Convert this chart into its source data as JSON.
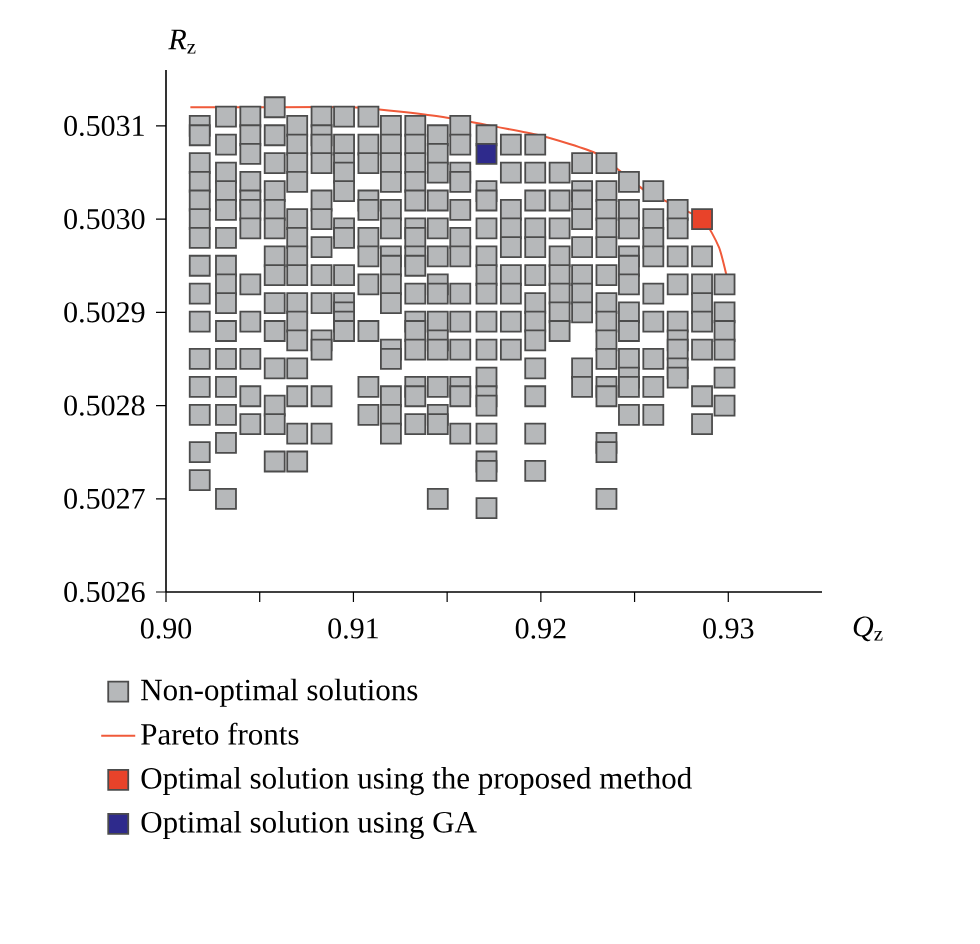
{
  "chart_data": {
    "type": "scatter",
    "xlabel": "*Q*$_{z}$",
    "ylabel": "*R*$_{z}$",
    "xlim": [
      0.9,
      0.935
    ],
    "ylim": [
      0.5026,
      0.50316
    ],
    "xticks": [
      {
        "value": 0.9,
        "label": "0.90"
      },
      {
        "value": 0.905,
        "label": null
      },
      0.91,
      {
        "value": 0.915,
        "label": null
      },
      0.92,
      {
        "value": 0.925,
        "label": null
      },
      0.93
    ],
    "yticks": [
      0.5026,
      0.5027,
      0.5028,
      0.5029,
      {
        "value": 0.503,
        "label": "0.5030"
      },
      0.5031
    ],
    "marker": "square",
    "legend": "bottom",
    "series": [
      {
        "name": "Non-optimal solutions",
        "color": "#b6b8ba",
        "x": [
          0.9018,
          0.9018,
          0.9018,
          0.9018,
          0.9018,
          0.9018,
          0.9018,
          0.9018,
          0.9018,
          0.9018,
          0.9018,
          0.9018,
          0.9018,
          0.9018,
          0.9018,
          0.9032,
          0.9032,
          0.9032,
          0.9032,
          0.9032,
          0.9032,
          0.9032,
          0.9032,
          0.9032,
          0.9032,
          0.9032,
          0.9032,
          0.9032,
          0.9032,
          0.9032,
          0.9045,
          0.9045,
          0.9045,
          0.9045,
          0.9045,
          0.9045,
          0.9045,
          0.9045,
          0.9045,
          0.9045,
          0.9045,
          0.9045,
          0.9058,
          0.9058,
          0.9058,
          0.9058,
          0.9058,
          0.9058,
          0.9058,
          0.9058,
          0.9058,
          0.9058,
          0.9058,
          0.9058,
          0.9058,
          0.9058,
          0.907,
          0.907,
          0.907,
          0.907,
          0.907,
          0.907,
          0.907,
          0.907,
          0.907,
          0.907,
          0.907,
          0.907,
          0.907,
          0.907,
          0.907,
          0.9083,
          0.9083,
          0.9083,
          0.9083,
          0.9083,
          0.9083,
          0.9083,
          0.9083,
          0.9083,
          0.9083,
          0.9083,
          0.9083,
          0.9083,
          0.9095,
          0.9095,
          0.9095,
          0.9095,
          0.9095,
          0.9095,
          0.9095,
          0.9095,
          0.9095,
          0.9095,
          0.9095,
          0.9095,
          0.9108,
          0.9108,
          0.9108,
          0.9108,
          0.9108,
          0.9108,
          0.9108,
          0.9108,
          0.9108,
          0.9108,
          0.9108,
          0.912,
          0.912,
          0.912,
          0.912,
          0.912,
          0.912,
          0.912,
          0.912,
          0.912,
          0.912,
          0.912,
          0.912,
          0.912,
          0.912,
          0.912,
          0.9133,
          0.9133,
          0.9133,
          0.9133,
          0.9133,
          0.9133,
          0.9133,
          0.9133,
          0.9133,
          0.9133,
          0.9133,
          0.9133,
          0.9133,
          0.9133,
          0.9133,
          0.9133,
          0.9145,
          0.9145,
          0.9145,
          0.9145,
          0.9145,
          0.9145,
          0.9145,
          0.9145,
          0.9145,
          0.9145,
          0.9145,
          0.9145,
          0.9145,
          0.9145,
          0.9145,
          0.9157,
          0.9157,
          0.9157,
          0.9157,
          0.9157,
          0.9157,
          0.9157,
          0.9157,
          0.9157,
          0.9157,
          0.9157,
          0.9157,
          0.9157,
          0.9171,
          0.9171,
          0.9171,
          0.9171,
          0.9171,
          0.9171,
          0.9171,
          0.9171,
          0.9171,
          0.9171,
          0.9171,
          0.9171,
          0.9171,
          0.9171,
          0.9171,
          0.9171,
          0.9184,
          0.9184,
          0.9184,
          0.9184,
          0.9184,
          0.9184,
          0.9184,
          0.9184,
          0.9184,
          0.9197,
          0.9197,
          0.9197,
          0.9197,
          0.9197,
          0.9197,
          0.9197,
          0.9197,
          0.9197,
          0.9197,
          0.9197,
          0.9197,
          0.9197,
          0.921,
          0.921,
          0.921,
          0.921,
          0.921,
          0.921,
          0.921,
          0.921,
          0.9222,
          0.9222,
          0.9222,
          0.9222,
          0.9222,
          0.9222,
          0.9222,
          0.9222,
          0.9222,
          0.9222,
          0.9235,
          0.9235,
          0.9235,
          0.9235,
          0.9235,
          0.9235,
          0.9235,
          0.9235,
          0.9235,
          0.9235,
          0.9235,
          0.9235,
          0.9235,
          0.9235,
          0.9235,
          0.9247,
          0.9247,
          0.9247,
          0.9247,
          0.9247,
          0.9247,
          0.9247,
          0.9247,
          0.9247,
          0.9247,
          0.9247,
          0.9247,
          0.926,
          0.926,
          0.926,
          0.926,
          0.926,
          0.926,
          0.926,
          0.926,
          0.926,
          0.9273,
          0.9273,
          0.9273,
          0.9273,
          0.9273,
          0.9273,
          0.9273,
          0.9273,
          0.9273,
          0.9286,
          0.9286,
          0.9286,
          0.9286,
          0.9286,
          0.9286,
          0.9286,
          0.9298,
          0.9298,
          0.9298,
          0.9298,
          0.9298,
          0.9298
        ],
        "values": [
          0.5031,
          0.50309,
          0.50306,
          0.50304,
          0.50302,
          0.503,
          0.50298,
          0.50295,
          0.50292,
          0.50289,
          0.50285,
          0.50282,
          0.50279,
          0.50275,
          0.50272,
          0.50311,
          0.50308,
          0.50305,
          0.50303,
          0.50301,
          0.50298,
          0.50295,
          0.50293,
          0.50291,
          0.50288,
          0.50285,
          0.50282,
          0.50279,
          0.50276,
          0.5027,
          0.50311,
          0.50309,
          0.50307,
          0.50304,
          0.50302,
          0.50301,
          0.50299,
          0.50293,
          0.50289,
          0.50285,
          0.50281,
          0.50278,
          0.50312,
          0.50309,
          0.50306,
          0.50303,
          0.50301,
          0.50299,
          0.50296,
          0.50294,
          0.50291,
          0.50288,
          0.50284,
          0.5028,
          0.50278,
          0.50274,
          0.5031,
          0.50308,
          0.50306,
          0.50304,
          0.503,
          0.50298,
          0.50296,
          0.50294,
          0.50291,
          0.50289,
          0.50287,
          0.50284,
          0.50281,
          0.50277,
          0.50274,
          0.50311,
          0.50309,
          0.50308,
          0.50306,
          0.50302,
          0.503,
          0.50297,
          0.50294,
          0.50291,
          0.50287,
          0.50286,
          0.50281,
          0.50277,
          0.50311,
          0.50308,
          0.50306,
          0.50305,
          0.50303,
          0.50299,
          0.50298,
          0.50294,
          0.50291,
          0.5029,
          0.50289,
          0.50288,
          0.50311,
          0.50308,
          0.50306,
          0.50302,
          0.50301,
          0.50298,
          0.50296,
          0.50293,
          0.50288,
          0.50282,
          0.50279,
          0.5031,
          0.50308,
          0.50306,
          0.50304,
          0.50301,
          0.50299,
          0.50296,
          0.50295,
          0.50293,
          0.50291,
          0.50286,
          0.50285,
          0.50281,
          0.50279,
          0.50277,
          0.5031,
          0.50308,
          0.50306,
          0.50304,
          0.50302,
          0.50299,
          0.50298,
          0.50296,
          0.50295,
          0.50292,
          0.50289,
          0.50288,
          0.50286,
          0.50282,
          0.50281,
          0.50278,
          0.50309,
          0.50307,
          0.50305,
          0.50302,
          0.50299,
          0.50296,
          0.50293,
          0.50292,
          0.50289,
          0.50287,
          0.50286,
          0.50282,
          0.50279,
          0.50278,
          0.5027,
          0.5031,
          0.50308,
          0.50305,
          0.50304,
          0.50301,
          0.50298,
          0.50296,
          0.50292,
          0.50289,
          0.50286,
          0.50282,
          0.50281,
          0.50277,
          0.50309,
          0.50303,
          0.50302,
          0.50299,
          0.50296,
          0.50294,
          0.50292,
          0.50289,
          0.50286,
          0.50283,
          0.50281,
          0.5028,
          0.50277,
          0.50274,
          0.50273,
          0.50269,
          0.50308,
          0.50305,
          0.50301,
          0.50299,
          0.50297,
          0.50294,
          0.50292,
          0.50289,
          0.50286,
          0.50308,
          0.50305,
          0.50302,
          0.50299,
          0.50297,
          0.50294,
          0.50291,
          0.50289,
          0.50287,
          0.50284,
          0.50281,
          0.50277,
          0.50273,
          0.50305,
          0.50302,
          0.50299,
          0.50296,
          0.50294,
          0.50292,
          0.5029,
          0.50288,
          0.50306,
          0.50303,
          0.50302,
          0.503,
          0.50297,
          0.50294,
          0.50292,
          0.5029,
          0.50284,
          0.50282,
          0.50306,
          0.50303,
          0.50301,
          0.50299,
          0.50297,
          0.50294,
          0.50291,
          0.50289,
          0.50287,
          0.50285,
          0.50282,
          0.50281,
          0.50276,
          0.50275,
          0.5027,
          0.50304,
          0.50301,
          0.50299,
          0.50296,
          0.50295,
          0.50293,
          0.5029,
          0.50288,
          0.50285,
          0.50283,
          0.50282,
          0.50279,
          0.50303,
          0.503,
          0.50298,
          0.50296,
          0.50292,
          0.50289,
          0.50285,
          0.50282,
          0.50279,
          0.50301,
          0.50299,
          0.50296,
          0.50293,
          0.50289,
          0.50287,
          0.50286,
          0.50284,
          0.50283,
          0.50296,
          0.50293,
          0.50291,
          0.50289,
          0.50286,
          0.50281,
          0.50278,
          0.50293,
          0.5029,
          0.50288,
          0.50286,
          0.50283,
          0.5028
        ]
      },
      {
        "name": "Pareto fronts",
        "type": "line",
        "marker": "none",
        "color": "#f05a3a",
        "x": [
          0.9013,
          0.905,
          0.91,
          0.9146,
          0.9199,
          0.923,
          0.9256,
          0.9286,
          0.9295,
          0.9299
        ],
        "values": [
          0.50312,
          0.50312,
          0.50312,
          0.50311,
          0.50309,
          0.50307,
          0.50303,
          0.503,
          0.50297,
          0.50294
        ]
      },
      {
        "name": "Optimal solution using the proposed method",
        "color": "#e8432a",
        "x": [
          0.9286
        ],
        "values": [
          0.503
        ]
      },
      {
        "name": "Optimal solution using GA",
        "color": "#2e2a8c",
        "x": [
          0.9171
        ],
        "values": [
          0.50307
        ]
      }
    ]
  }
}
